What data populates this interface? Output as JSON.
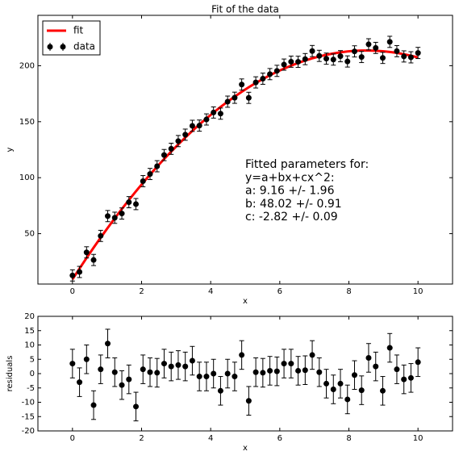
{
  "chart_data": [
    {
      "type": "errorbar",
      "title": "Fit of the data",
      "xlabel": "x",
      "ylabel": "y",
      "xlim": [
        -1,
        11
      ],
      "xticks": [
        0,
        2,
        4,
        6,
        8,
        10
      ],
      "ylim": [
        5,
        245
      ],
      "yticks": [
        50,
        100,
        150,
        200
      ],
      "legend": "upper left",
      "annotation": [
        "Fitted parameters for:",
        "y=a+bx+cx^2:",
        "a: 9.16 +/- 1.96",
        "b: 48.02 +/- 0.91",
        "c: -2.82 +/- 0.09"
      ],
      "x": [
        0,
        0.204,
        0.408,
        0.612,
        0.816,
        1.02,
        1.224,
        1.429,
        1.633,
        1.837,
        2.041,
        2.245,
        2.449,
        2.653,
        2.857,
        3.061,
        3.265,
        3.469,
        3.673,
        3.878,
        4.082,
        4.286,
        4.49,
        4.694,
        4.898,
        5.102,
        5.306,
        5.51,
        5.714,
        5.918,
        6.122,
        6.327,
        6.531,
        6.735,
        6.939,
        7.143,
        7.347,
        7.551,
        7.755,
        7.959,
        8.163,
        8.367,
        8.571,
        8.776,
        8.98,
        9.184,
        9.388,
        9.592,
        9.796,
        10
      ],
      "series": [
        {
          "name": "fit",
          "style": "line",
          "color": "#ff0000",
          "values": [
            9.16,
            18.84,
            28.29,
            37.5,
            46.48,
            55.22,
            63.74,
            72.01,
            80.05,
            87.86,
            95.42,
            102.76,
            109.86,
            116.72,
            123.34,
            129.73,
            135.89,
            141.82,
            147.51,
            152.96,
            158.17,
            163.16,
            167.9,
            172.42,
            176.7,
            180.75,
            184.57,
            188.14,
            191.48,
            194.59,
            197.46,
            200.06,
            202.46,
            204.66,
            206.56,
            208.26,
            209.76,
            210.96,
            211.96,
            212.76,
            213.26,
            213.56,
            213.56,
            213.36,
            212.96,
            212.26,
            211.46,
            210.26,
            208.96,
            207.36
          ]
        },
        {
          "name": "data",
          "style": "errorbar",
          "color": "#000000",
          "yerr": 5,
          "values": [
            12.7,
            15.8,
            33.3,
            26.5,
            48.0,
            65.7,
            64.2,
            68.0,
            78.1,
            76.4,
            96.9,
            103.3,
            110.2,
            120.2,
            125.8,
            132.7,
            138.4,
            146.3,
            146.5,
            152.0,
            158.2,
            157.2,
            167.9,
            171.4,
            183.2,
            171.3,
            185.1,
            188.4,
            192.5,
            195.4,
            201.0,
            203.6,
            203.5,
            205.9,
            213.1,
            208.8,
            206.3,
            205.5,
            208.5,
            203.8,
            212.8,
            207.8,
            219.1,
            215.9,
            207.0,
            221.3,
            213.0,
            208.3,
            207.5,
            211.4
          ]
        }
      ]
    },
    {
      "type": "errorbar",
      "xlabel": "x",
      "ylabel": "residuals",
      "xlim": [
        -1,
        11
      ],
      "xticks": [
        0,
        2,
        4,
        6,
        8,
        10
      ],
      "ylim": [
        -20,
        20
      ],
      "yticks": [
        -20,
        -15,
        -10,
        -5,
        0,
        5,
        10,
        15,
        20
      ],
      "x": [
        0,
        0.204,
        0.408,
        0.612,
        0.816,
        1.02,
        1.224,
        1.429,
        1.633,
        1.837,
        2.041,
        2.245,
        2.449,
        2.653,
        2.857,
        3.061,
        3.265,
        3.469,
        3.673,
        3.878,
        4.082,
        4.286,
        4.49,
        4.694,
        4.898,
        5.102,
        5.306,
        5.51,
        5.714,
        5.918,
        6.122,
        6.327,
        6.531,
        6.735,
        6.939,
        7.143,
        7.347,
        7.551,
        7.755,
        7.959,
        8.163,
        8.367,
        8.571,
        8.776,
        8.98,
        9.184,
        9.388,
        9.592,
        9.796,
        10
      ],
      "series": [
        {
          "style": "errorbar",
          "color": "#000000",
          "yerr": 5,
          "values": [
            3.5,
            -3,
            5,
            -11,
            1.5,
            10.5,
            0.5,
            -4,
            -2,
            -11.5,
            1.5,
            0.5,
            0.3,
            3.5,
            2.5,
            3,
            2.5,
            4.5,
            -1,
            -1,
            0,
            -6,
            0,
            -1,
            6.5,
            -9.5,
            0.5,
            0.3,
            1,
            0.8,
            3.5,
            3.5,
            1,
            1.2,
            6.5,
            0.5,
            -3.5,
            -5.5,
            -3.5,
            -9,
            -0.5,
            -5.8,
            5.5,
            2.5,
            -6,
            9,
            1.5,
            -2,
            -1.5,
            4
          ]
        }
      ]
    }
  ]
}
